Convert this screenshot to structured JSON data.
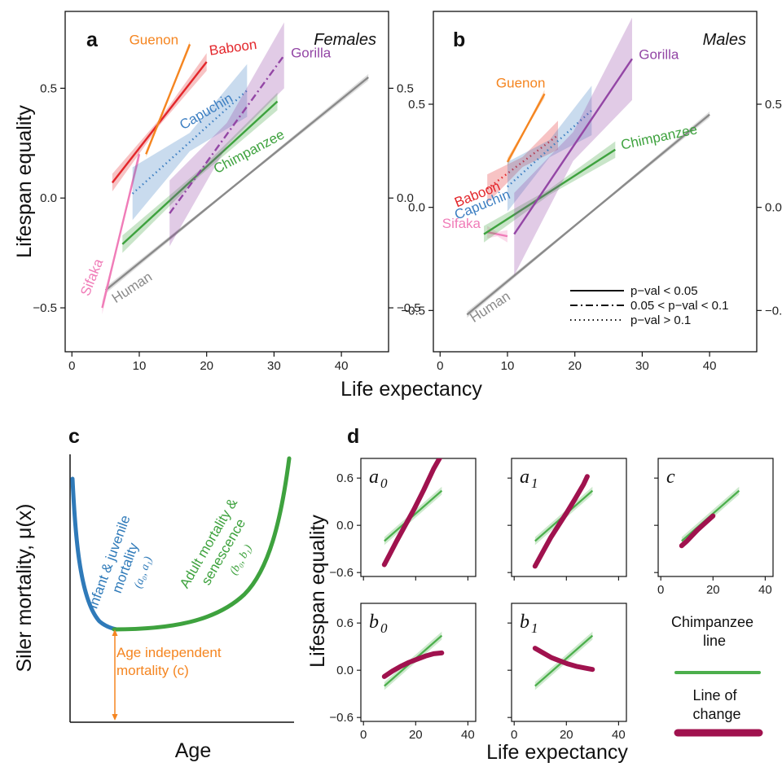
{
  "chart_data": [
    {
      "panel": "a",
      "type": "line",
      "title": "Females",
      "xlabel": "Life expectancy",
      "ylabel": "Lifespan equality",
      "xlim": [
        -1,
        47
      ],
      "ylim": [
        -0.7,
        0.85
      ],
      "xticks": [
        "0",
        "10",
        "20",
        "30",
        "40"
      ],
      "yticks": [
        "0.5",
        "0.0",
        "−0.5"
      ],
      "series": [
        {
          "name": "Human",
          "color": "#8a8a8a",
          "linestyle": "solid",
          "x": [
            5,
            44
          ],
          "y": [
            -0.42,
            0.55
          ],
          "band": 0.015,
          "label_at": [
            6.5,
            -0.48
          ],
          "label_rot": -33
        },
        {
          "name": "Sifaka",
          "color": "#f07cb8",
          "linestyle": "solid",
          "x": [
            4.5,
            10
          ],
          "y": [
            -0.5,
            0.2
          ],
          "band": 0.03,
          "label_at": [
            2.5,
            -0.45
          ],
          "label_rot": -68
        },
        {
          "name": "Baboon",
          "color": "#e3262b",
          "linestyle": "solid",
          "x": [
            6,
            20
          ],
          "y": [
            0.07,
            0.62
          ],
          "band": 0.04,
          "label_at": [
            20.5,
            0.65
          ],
          "label_rot": -8
        },
        {
          "name": "Guenon",
          "color": "#f58520",
          "linestyle": "solid",
          "x": [
            11,
            17.5
          ],
          "y": [
            0.2,
            0.7
          ],
          "band": 0.015,
          "label_at": [
            8.5,
            0.7
          ],
          "label_rot": 0
        },
        {
          "name": "Capuchin",
          "color": "#3d7fc2",
          "linestyle": "dotted",
          "x": [
            9,
            26
          ],
          "y": [
            0.02,
            0.49
          ],
          "band": 0.12,
          "label_at": [
            16.5,
            0.31
          ],
          "label_rot": -30
        },
        {
          "name": "Chimpanzee",
          "color": "#3ea23e",
          "linestyle": "solid",
          "x": [
            7.5,
            30.5
          ],
          "y": [
            -0.21,
            0.44
          ],
          "band": 0.04,
          "label_at": [
            21.5,
            0.11
          ],
          "label_rot": -28
        },
        {
          "name": "Gorilla",
          "color": "#9346a5",
          "linestyle": "dashdot",
          "x": [
            14.5,
            31.5
          ],
          "y": [
            -0.07,
            0.65
          ],
          "band": 0.15,
          "label_at": [
            32.5,
            0.64
          ],
          "label_rot": 0
        }
      ]
    },
    {
      "panel": "b",
      "type": "line",
      "title": "Males",
      "xlabel": "Life expectancy",
      "ylabel": "",
      "xlim": [
        -1,
        47
      ],
      "ylim": [
        -0.7,
        0.95
      ],
      "xticks": [
        "0",
        "10",
        "20",
        "30",
        "40"
      ],
      "yticks": [
        "0.5",
        "0.0",
        "−0.5"
      ],
      "series": [
        {
          "name": "Human",
          "color": "#8a8a8a",
          "linestyle": "solid",
          "x": [
            4,
            40
          ],
          "y": [
            -0.52,
            0.45
          ],
          "band": 0.015,
          "label_at": [
            5,
            -0.56
          ],
          "label_rot": -33
        },
        {
          "name": "Sifaka",
          "color": "#f07cb8",
          "linestyle": "solid",
          "x": [
            7,
            10
          ],
          "y": [
            -0.12,
            -0.14
          ],
          "band": 0.03,
          "label_at": [
            0.3,
            -0.1
          ],
          "label_rot": 0
        },
        {
          "name": "Baboon",
          "color": "#e3262b",
          "linestyle": "dotted",
          "x": [
            7,
            17.5
          ],
          "y": [
            0.09,
            0.35
          ],
          "band": 0.07,
          "label_at": [
            2.5,
            0.0
          ],
          "label_rot": -22
        },
        {
          "name": "Guenon",
          "color": "#f58520",
          "linestyle": "solid",
          "x": [
            10,
            15.5
          ],
          "y": [
            0.22,
            0.55
          ],
          "band": 0.02,
          "label_at": [
            8.3,
            0.58
          ],
          "label_rot": 0
        },
        {
          "name": "Capuchin",
          "color": "#3d7fc2",
          "linestyle": "dotted",
          "x": [
            10,
            22.5
          ],
          "y": [
            0.1,
            0.47
          ],
          "band": 0.12,
          "label_at": [
            2.5,
            -0.06
          ],
          "label_rot": -22
        },
        {
          "name": "Chimpanzee",
          "color": "#3ea23e",
          "linestyle": "solid",
          "x": [
            6.5,
            26
          ],
          "y": [
            -0.13,
            0.28
          ],
          "band": 0.04,
          "label_at": [
            27,
            0.28
          ],
          "label_rot": -12
        },
        {
          "name": "Gorilla",
          "color": "#9346a5",
          "linestyle": "solid",
          "x": [
            11,
            28.5
          ],
          "y": [
            -0.13,
            0.72
          ],
          "band": 0.2,
          "label_at": [
            29.5,
            0.72
          ],
          "label_rot": 0
        }
      ],
      "legend": {
        "position": "bottom-right",
        "entries": [
          {
            "label": "p−val < 0.05",
            "linestyle": "solid"
          },
          {
            "label": "0.05 < p−val < 0.1",
            "linestyle": "dashdot"
          },
          {
            "label": "p−val > 0.1",
            "linestyle": "dotted"
          }
        ]
      }
    },
    {
      "panel": "c",
      "type": "line",
      "xlabel": "Age",
      "ylabel": "Siler mortality, μ(x)",
      "curve_color_infant": "#2f7ab9",
      "curve_color_adult": "#3ea23e",
      "annotation_color": "#f58520",
      "infant_label": [
        "Infant & juvenile",
        "mortality"
      ],
      "infant_params": "(a₀, a₁)",
      "adult_label": [
        "Adult mortality &",
        "senescence"
      ],
      "adult_params": "(b₀, b₁)",
      "age_label": [
        "Age independent",
        "mortality (c)"
      ]
    },
    {
      "panel": "d",
      "type": "line",
      "xlabel": "Life expectancy",
      "ylabel": "Lifespan equality",
      "xlim": [
        -1,
        43
      ],
      "ylim": [
        -0.65,
        0.85
      ],
      "xticks": [
        "0",
        "20",
        "40"
      ],
      "yticks": [
        "0.6",
        "0.0",
        "−0.6"
      ],
      "chimp_color": "#4caf4c",
      "change_color": "#a0124e",
      "chimp_line": {
        "x": [
          8,
          30
        ],
        "y": [
          -0.2,
          0.44
        ]
      },
      "subplots": [
        {
          "param": "a",
          "sub": "0",
          "change": {
            "x": [
              8,
              9.9,
              12.7,
              15.5,
              19.3,
              23.1,
              26.9,
              30.0
            ],
            "y": [
              -0.5,
              -0.38,
              -0.2,
              -0.03,
              0.2,
              0.45,
              0.72,
              0.9
            ]
          }
        },
        {
          "param": "a",
          "sub": "1",
          "change": {
            "x": [
              8,
              11.1,
              14.1,
              17.2,
              20.3,
              23.4,
              26.6,
              28.0
            ],
            "y": [
              -0.52,
              -0.33,
              -0.15,
              0.01,
              0.17,
              0.34,
              0.52,
              0.62
            ]
          }
        },
        {
          "param": "c",
          "sub": "",
          "change": {
            "x": [
              8,
              10,
              12,
              14,
              16,
              18,
              20
            ],
            "y": [
              -0.26,
              -0.2,
              -0.13,
              -0.06,
              0.0,
              0.06,
              0.12
            ]
          }
        },
        {
          "param": "b",
          "sub": "0",
          "change": {
            "x": [
              8,
              11.1,
              14.3,
              17.4,
              20.6,
              23.7,
              26.9,
              30.0
            ],
            "y": [
              -0.08,
              -0.01,
              0.05,
              0.1,
              0.14,
              0.18,
              0.21,
              0.22
            ]
          }
        },
        {
          "param": "b",
          "sub": "1",
          "change": {
            "x": [
              8,
              11.1,
              14.3,
              17.4,
              20.6,
              23.7,
              26.9,
              30.0
            ],
            "y": [
              0.28,
              0.22,
              0.16,
              0.12,
              0.08,
              0.05,
              0.03,
              0.01
            ]
          }
        }
      ],
      "legend": {
        "chimp_label": [
          "Chimpanzee",
          "line"
        ],
        "change_label": [
          "Line of",
          "change"
        ]
      }
    }
  ]
}
